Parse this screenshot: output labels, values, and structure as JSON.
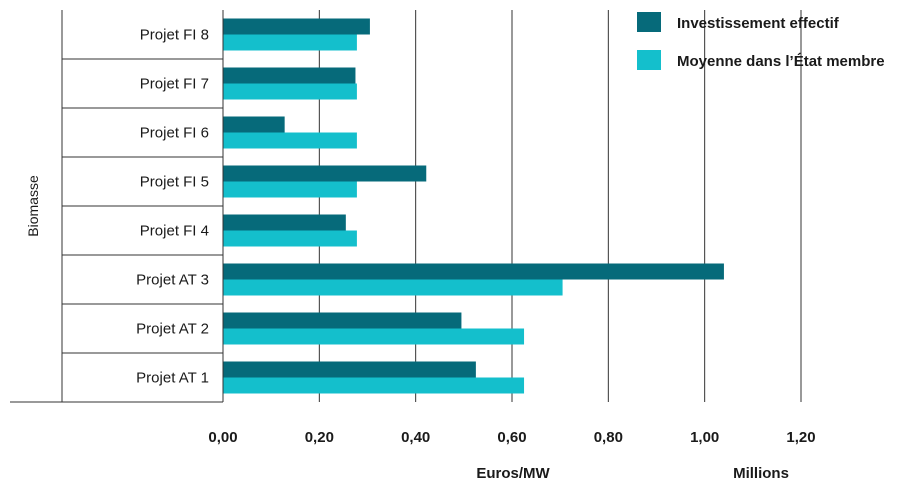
{
  "chart_data": {
    "type": "bar",
    "orientation": "horizontal",
    "group_label": "Biomasse",
    "categories": [
      "Projet FI 8",
      "Projet FI 7",
      "Projet FI 6",
      "Projet FI 5",
      "Projet FI 4",
      "Projet AT 3",
      "Projet AT 2",
      "Projet AT 1"
    ],
    "series": [
      {
        "name": "Investissement effectif",
        "color": "#066a7a",
        "values": [
          0.305,
          0.275,
          0.128,
          0.422,
          0.255,
          1.04,
          0.495,
          0.525
        ]
      },
      {
        "name": "Moyenne dans l’État membre",
        "color": "#14bfcc",
        "values": [
          0.278,
          0.278,
          0.278,
          0.278,
          0.278,
          0.705,
          0.625,
          0.625
        ]
      }
    ],
    "xlim": [
      0,
      1.2
    ],
    "x_ticks": [
      "0,00",
      "0,20",
      "0,40",
      "0,60",
      "0,80",
      "1,00",
      "1,20"
    ],
    "xlabel": "Euros/MW",
    "x_unit": "Millions",
    "grid": "vertical",
    "legend_position": "top-right"
  }
}
